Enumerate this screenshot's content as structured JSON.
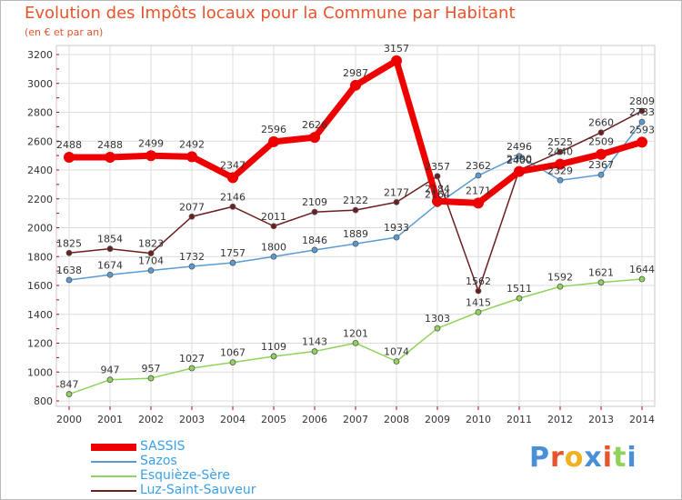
{
  "chart_data": {
    "type": "line",
    "title": "Evolution des Impôts locaux pour la Commune par Habitant",
    "subtitle": "(en € et par an)",
    "xlabel": "",
    "ylabel": "",
    "ylim": [
      800,
      3200
    ],
    "yticks": [
      800,
      1000,
      1200,
      1400,
      1600,
      1800,
      2000,
      2200,
      2400,
      2600,
      2800,
      3000,
      3200
    ],
    "x": [
      2000,
      2001,
      2002,
      2003,
      2004,
      2005,
      2006,
      2007,
      2008,
      2009,
      2010,
      2011,
      2012,
      2013,
      2014
    ],
    "grid": true,
    "legend_position": "bottom-left",
    "series": [
      {
        "name": "Sazos",
        "color": "#5a9bd4",
        "values": [
          1638,
          1674,
          1704,
          1732,
          1757,
          1800,
          1846,
          1889,
          1933,
          2164,
          2362,
          2496,
          2329,
          2367,
          2733
        ]
      },
      {
        "name": "Esquièze-Sère",
        "color": "#8fd35a",
        "values": [
          847,
          947,
          957,
          1027,
          1067,
          1109,
          1143,
          1201,
          1074,
          1303,
          1415,
          1511,
          1592,
          1621,
          1644
        ]
      },
      {
        "name": "Luz-Saint-Sauveur",
        "color": "#6b1f1f",
        "values": [
          1825,
          1854,
          1823,
          2077,
          2146,
          2011,
          2109,
          2122,
          2177,
          2357,
          1562,
          2400,
          2525,
          2660,
          2809
        ]
      },
      {
        "name": "SASSIS",
        "color": "#ee0000",
        "values": [
          2488,
          2488,
          2499,
          2492,
          2347,
          2596,
          2626,
          2987,
          3157,
          2184,
          2171,
          2390,
          2440,
          2509,
          2593
        ]
      }
    ]
  },
  "legend": {
    "items": [
      {
        "label": "SASSIS",
        "color": "#ee0000"
      },
      {
        "label": "Sazos",
        "color": "#5a9bd4"
      },
      {
        "label": "Esquièze-Sère",
        "color": "#8fd35a"
      },
      {
        "label": "Luz-Saint-Sauveur",
        "color": "#6b1f1f"
      }
    ]
  },
  "brand": {
    "text": "Proxiti",
    "colors": [
      "#4a90d9",
      "#e8532b",
      "#f2b01e",
      "#4a90d9",
      "#e8532b",
      "#8fd35a",
      "#4a90d9"
    ]
  }
}
